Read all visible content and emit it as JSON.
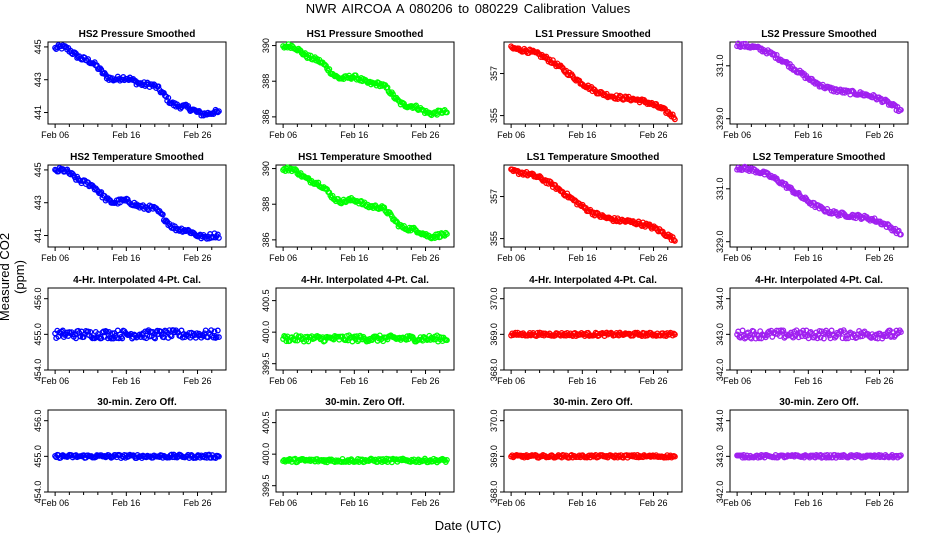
{
  "figure": {
    "title": "NWR   AIRCOA A   080206 to 080229   Calibration Values",
    "ylabel": "Measured CO2 (ppm)",
    "xlabel": "Date (UTC)",
    "colors": {
      "HS2": "#0000ff",
      "HS1": "#00ff00",
      "LS1": "#ff0000",
      "LS2": "#a020f0"
    }
  },
  "chart_data": [
    {
      "type": "scatter",
      "title": "HS2 Pressure Smoothed",
      "series": "HS2",
      "trend": "step",
      "start": 444.9,
      "end": 440.6,
      "noise": 0.15,
      "ylim": [
        440.3,
        445.3
      ],
      "yticks": [
        "441",
        "443",
        "445"
      ],
      "xticks": [
        "Feb 06",
        "Feb 16",
        "Feb 26"
      ],
      "xlim": [
        5,
        30
      ]
    },
    {
      "type": "scatter",
      "title": "HS1 Pressure Smoothed",
      "series": "HS1",
      "trend": "step",
      "start": 389.9,
      "end": 385.9,
      "noise": 0.12,
      "ylim": [
        385.6,
        390.2
      ],
      "yticks": [
        "386",
        "388",
        "390"
      ],
      "xticks": [
        "Feb 06",
        "Feb 16",
        "Feb 26"
      ],
      "xlim": [
        5,
        30
      ]
    },
    {
      "type": "scatter",
      "title": "LS1 Pressure Smoothed",
      "series": "LS1",
      "trend": "linear",
      "start": 358.2,
      "end": 354.8,
      "noise": 0.1,
      "ylim": [
        354.6,
        358.5
      ],
      "yticks": [
        "355",
        "357"
      ],
      "xticks": [
        "Feb 06",
        "Feb 16",
        "Feb 26"
      ],
      "xlim": [
        5,
        30
      ]
    },
    {
      "type": "scatter",
      "title": "LS2 Pressure Smoothed",
      "series": "LS2",
      "trend": "linear",
      "start": 331.8,
      "end": 329.2,
      "noise": 0.08,
      "ylim": [
        328.8,
        331.9
      ],
      "yticks": [
        "329.0",
        "331.0"
      ],
      "xticks": [
        "Feb 06",
        "Feb 16",
        "Feb 26"
      ],
      "xlim": [
        5,
        30
      ]
    },
    {
      "type": "scatter",
      "title": "HS2 Temperature Smoothed",
      "series": "HS2",
      "trend": "step",
      "start": 444.9,
      "end": 440.6,
      "noise": 0.15,
      "ylim": [
        440.3,
        445.3
      ],
      "yticks": [
        "441",
        "443",
        "445"
      ],
      "xticks": [
        "Feb 06",
        "Feb 16",
        "Feb 26"
      ],
      "xlim": [
        5,
        30
      ]
    },
    {
      "type": "scatter",
      "title": "HS1 Temperature Smoothed",
      "series": "HS1",
      "trend": "step",
      "start": 389.9,
      "end": 385.9,
      "noise": 0.12,
      "ylim": [
        385.6,
        390.2
      ],
      "yticks": [
        "386",
        "388",
        "390"
      ],
      "xticks": [
        "Feb 06",
        "Feb 16",
        "Feb 26"
      ],
      "xlim": [
        5,
        30
      ]
    },
    {
      "type": "scatter",
      "title": "LS1 Temperature Smoothed",
      "series": "LS1",
      "trend": "linear",
      "start": 358.2,
      "end": 354.8,
      "noise": 0.1,
      "ylim": [
        354.6,
        358.5
      ],
      "yticks": [
        "355",
        "357"
      ],
      "xticks": [
        "Feb 06",
        "Feb 16",
        "Feb 26"
      ],
      "xlim": [
        5,
        30
      ]
    },
    {
      "type": "scatter",
      "title": "LS2 Temperature Smoothed",
      "series": "LS2",
      "trend": "linear",
      "start": 331.8,
      "end": 329.2,
      "noise": 0.08,
      "ylim": [
        328.8,
        331.9
      ],
      "yticks": [
        "329.0",
        "331.0"
      ],
      "xticks": [
        "Feb 06",
        "Feb 16",
        "Feb 26"
      ],
      "xlim": [
        5,
        30
      ]
    },
    {
      "type": "scatter",
      "title": "4-Hr. Interpolated 4-Pt. Cal.",
      "series": "HS2",
      "trend": "flat",
      "start": 455.0,
      "end": 455.0,
      "noise": 0.12,
      "ylim": [
        454.0,
        456.3
      ],
      "yticks": [
        "454.0",
        "455.0",
        "456.0"
      ],
      "xticks": [
        "Feb 06",
        "Feb 16",
        "Feb 26"
      ],
      "xlim": [
        5,
        30
      ]
    },
    {
      "type": "scatter",
      "title": "4-Hr. Interpolated 4-Pt. Cal.",
      "series": "HS1",
      "trend": "flat",
      "start": 399.9,
      "end": 399.9,
      "noise": 0.05,
      "ylim": [
        399.4,
        400.7
      ],
      "yticks": [
        "399.5",
        "400.0",
        "400.5"
      ],
      "xticks": [
        "Feb 06",
        "Feb 16",
        "Feb 26"
      ],
      "xlim": [
        5,
        30
      ]
    },
    {
      "type": "scatter",
      "title": "4-Hr. Interpolated 4-Pt. Cal.",
      "series": "LS1",
      "trend": "flat",
      "start": 369.0,
      "end": 369.0,
      "noise": 0.05,
      "ylim": [
        368.0,
        370.3
      ],
      "yticks": [
        "368.0",
        "369.0",
        "370.0"
      ],
      "xticks": [
        "Feb 06",
        "Feb 16",
        "Feb 26"
      ],
      "xlim": [
        5,
        30
      ]
    },
    {
      "type": "scatter",
      "title": "4-Hr. Interpolated 4-Pt. Cal.",
      "series": "LS2",
      "trend": "flat",
      "start": 343.0,
      "end": 343.0,
      "noise": 0.12,
      "ylim": [
        342.0,
        344.3
      ],
      "yticks": [
        "342.0",
        "343.0",
        "344.0"
      ],
      "xticks": [
        "Feb 06",
        "Feb 16",
        "Feb 26"
      ],
      "xlim": [
        5,
        30
      ]
    },
    {
      "type": "scatter",
      "title": "30-min. Zero Off.",
      "series": "HS2",
      "trend": "flat",
      "start": 455.0,
      "end": 455.0,
      "noise": 0.05,
      "ylim": [
        454.0,
        456.3
      ],
      "yticks": [
        "454.0",
        "455.0",
        "456.0"
      ],
      "xticks": [
        "Feb 06",
        "Feb 16",
        "Feb 26"
      ],
      "xlim": [
        5,
        30
      ]
    },
    {
      "type": "scatter",
      "title": "30-min. Zero Off.",
      "series": "HS1",
      "trend": "flat",
      "start": 399.9,
      "end": 399.9,
      "noise": 0.03,
      "ylim": [
        399.4,
        400.7
      ],
      "yticks": [
        "399.5",
        "400.0",
        "400.5"
      ],
      "xticks": [
        "Feb 06",
        "Feb 16",
        "Feb 26"
      ],
      "xlim": [
        5,
        30
      ]
    },
    {
      "type": "scatter",
      "title": "30-min. Zero Off.",
      "series": "LS1",
      "trend": "flat",
      "start": 369.0,
      "end": 369.0,
      "noise": 0.04,
      "ylim": [
        368.0,
        370.3
      ],
      "yticks": [
        "368.0",
        "369.0",
        "370.0"
      ],
      "xticks": [
        "Feb 06",
        "Feb 16",
        "Feb 26"
      ],
      "xlim": [
        5,
        30
      ]
    },
    {
      "type": "scatter",
      "title": "30-min. Zero Off.",
      "series": "LS2",
      "trend": "flat",
      "start": 343.0,
      "end": 343.0,
      "noise": 0.04,
      "ylim": [
        342.0,
        344.3
      ],
      "yticks": [
        "342.0",
        "343.0",
        "344.0"
      ],
      "xticks": [
        "Feb 06",
        "Feb 16",
        "Feb 26"
      ],
      "xlim": [
        5,
        30
      ]
    }
  ]
}
